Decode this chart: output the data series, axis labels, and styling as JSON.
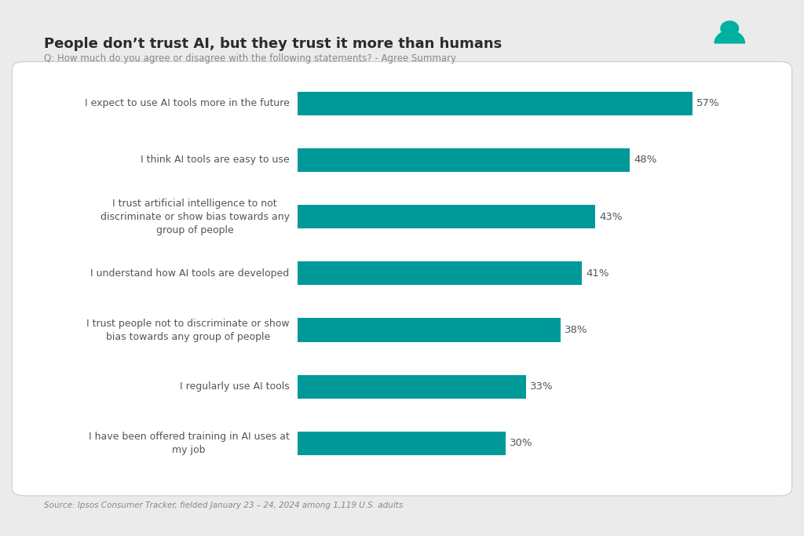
{
  "title": "People don’t trust AI, but they trust it more than humans",
  "subtitle": "Q: How much do you agree or disagree with the following statements? - Agree Summary",
  "source": "Source: Ipsos Consumer Tracker, fielded January 23 – 24, 2024 among 1,119 U.S. adults",
  "categories": [
    "I expect to use AI tools more in the future",
    "I think AI tools are easy to use",
    "I trust artificial intelligence to not\ndiscriminate or show bias towards any\ngroup of people",
    "I understand how AI tools are developed",
    "I trust people not to discriminate or show\nbias towards any group of people",
    "I regularly use AI tools",
    "I have been offered training in AI uses at\nmy job"
  ],
  "values": [
    57,
    48,
    43,
    41,
    38,
    33,
    30
  ],
  "bar_color": "#009999",
  "background_color": "#ebebeb",
  "chart_bg_color": "#ffffff",
  "title_color": "#2b2b2b",
  "subtitle_color": "#888888",
  "label_color": "#555555",
  "value_color": "#555555",
  "source_color": "#888888",
  "title_fontsize": 13,
  "subtitle_fontsize": 8.5,
  "label_fontsize": 9,
  "value_fontsize": 9.5,
  "source_fontsize": 7.5,
  "xlim": [
    0,
    65
  ]
}
